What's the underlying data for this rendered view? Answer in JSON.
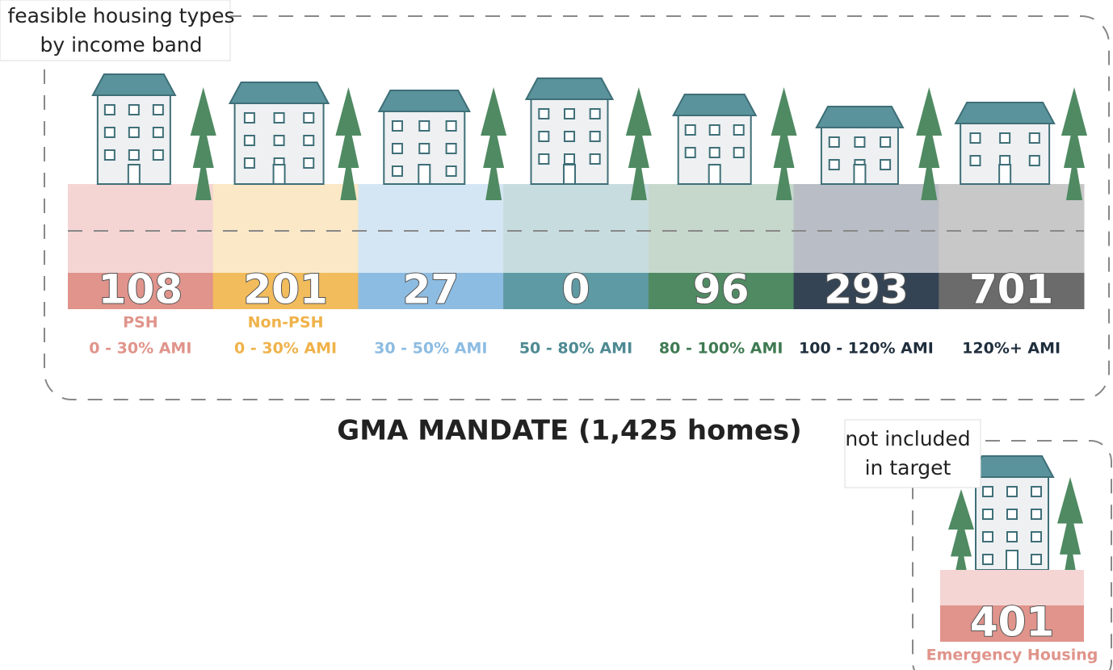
{
  "callout": {
    "lines": [
      "feasible housing types",
      "by income band"
    ]
  },
  "bands": [
    {
      "number": 108,
      "labels": [
        "PSH",
        "0 - 30% AMI"
      ],
      "light": "#f4d5d3",
      "dark": "#e0948b",
      "text_color": "#e0948b"
    },
    {
      "number": 201,
      "labels": [
        "Non-PSH",
        "0 - 30% AMI"
      ],
      "light": "#fbe8c6",
      "dark": "#f2bc5c",
      "text_color": "#efb24a"
    },
    {
      "number": 27,
      "labels": [
        "30 - 50% AMI"
      ],
      "light": "#d4e6f3",
      "dark": "#8dbce2",
      "text_color": "#8dbce2"
    },
    {
      "number": 0,
      "labels": [
        "50 - 80% AMI"
      ],
      "light": "#c7dcdf",
      "dark": "#5e9aa3",
      "text_color": "#4f8a93"
    },
    {
      "number": 96,
      "labels": [
        "80 - 100% AMI"
      ],
      "light": "#c6d8cc",
      "dark": "#4f8a62",
      "text_color": "#3f7a52"
    },
    {
      "number": 293,
      "labels": [
        "100 - 120% AMI"
      ],
      "light": "#b9bdc5",
      "dark": "#344454",
      "text_color": "#1f2e3d"
    },
    {
      "number": 701,
      "labels": [
        "120%+ AMI"
      ],
      "light": "#c8c8c8",
      "dark": "#6b6b6b",
      "text_color": "#1f2e3d"
    }
  ],
  "mandate": "GMA MANDATE (1,425 homes)",
  "side_callout": {
    "lines": [
      "not included",
      "in target"
    ]
  },
  "emergency": {
    "number": 401,
    "label": "Emergency Housing",
    "light": "#f4d5d3",
    "dark": "#e0948b",
    "text_color": "#e0948b"
  }
}
